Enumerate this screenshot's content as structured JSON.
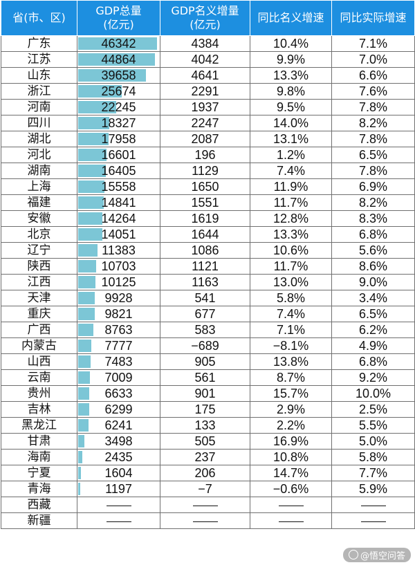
{
  "headers": {
    "province": "省(市、区)",
    "gdp_total_l1": "GDP总量",
    "gdp_total_l2": "(亿元)",
    "gdp_nominal_inc_l1": "GDP名义增量",
    "gdp_nominal_inc_l2": "(亿元)",
    "nominal_growth": "同比名义增速",
    "real_growth": "同比实际增速"
  },
  "gdp_max": 46342,
  "bar_color": "#7cc6d6",
  "header_color": "#1d8fe0",
  "rows": [
    {
      "province": "广东",
      "gdp": 46342,
      "gdp_text": "46342",
      "inc": "4384",
      "nominal": "10.4%",
      "real": "7.1%"
    },
    {
      "province": "江苏",
      "gdp": 44864,
      "gdp_text": "44864",
      "inc": "4042",
      "nominal": "9.9%",
      "real": "7.0%"
    },
    {
      "province": "山东",
      "gdp": 39658,
      "gdp_text": "39658",
      "inc": "4641",
      "nominal": "13.3%",
      "real": "6.6%"
    },
    {
      "province": "浙江",
      "gdp": 25674,
      "gdp_text": "25674",
      "inc": "2291",
      "nominal": "9.8%",
      "real": "7.6%"
    },
    {
      "province": "河南",
      "gdp": 22245,
      "gdp_text": "22245",
      "inc": "1937",
      "nominal": "9.5%",
      "real": "7.8%"
    },
    {
      "province": "四川",
      "gdp": 18327,
      "gdp_text": "18327",
      "inc": "2247",
      "nominal": "14.0%",
      "real": "8.2%"
    },
    {
      "province": "湖北",
      "gdp": 17958,
      "gdp_text": "17958",
      "inc": "2087",
      "nominal": "13.1%",
      "real": "7.8%"
    },
    {
      "province": "河北",
      "gdp": 16601,
      "gdp_text": "16601",
      "inc": "196",
      "nominal": "1.2%",
      "real": "6.5%"
    },
    {
      "province": "湖南",
      "gdp": 16405,
      "gdp_text": "16405",
      "inc": "1129",
      "nominal": "7.4%",
      "real": "7.8%"
    },
    {
      "province": "上海",
      "gdp": 15558,
      "gdp_text": "15558",
      "inc": "1650",
      "nominal": "11.9%",
      "real": "6.9%"
    },
    {
      "province": "福建",
      "gdp": 14841,
      "gdp_text": "14841",
      "inc": "1551",
      "nominal": "11.7%",
      "real": "8.2%"
    },
    {
      "province": "安徽",
      "gdp": 14264,
      "gdp_text": "14264",
      "inc": "1619",
      "nominal": "12.8%",
      "real": "8.3%"
    },
    {
      "province": "北京",
      "gdp": 14051,
      "gdp_text": "14051",
      "inc": "1644",
      "nominal": "13.3%",
      "real": "6.8%"
    },
    {
      "province": "辽宁",
      "gdp": 11383,
      "gdp_text": "11383",
      "inc": "1086",
      "nominal": "10.6%",
      "real": "5.6%"
    },
    {
      "province": "陕西",
      "gdp": 10703,
      "gdp_text": "10703",
      "inc": "1121",
      "nominal": "11.7%",
      "real": "8.6%"
    },
    {
      "province": "江西",
      "gdp": 10125,
      "gdp_text": "10125",
      "inc": "1163",
      "nominal": "13.0%",
      "real": "9.0%"
    },
    {
      "province": "天津",
      "gdp": 9928,
      "gdp_text": "9928",
      "inc": "541",
      "nominal": "5.8%",
      "real": "3.4%"
    },
    {
      "province": "重庆",
      "gdp": 9821,
      "gdp_text": "9821",
      "inc": "677",
      "nominal": "7.4%",
      "real": "6.5%"
    },
    {
      "province": "广西",
      "gdp": 8763,
      "gdp_text": "8763",
      "inc": "583",
      "nominal": "7.1%",
      "real": "6.2%"
    },
    {
      "province": "内蒙古",
      "gdp": 7777,
      "gdp_text": "7777",
      "inc": "−689",
      "nominal": "−8.1%",
      "real": "4.9%"
    },
    {
      "province": "山西",
      "gdp": 7483,
      "gdp_text": "7483",
      "inc": "905",
      "nominal": "13.8%",
      "real": "6.8%"
    },
    {
      "province": "云南",
      "gdp": 7009,
      "gdp_text": "7009",
      "inc": "561",
      "nominal": "8.7%",
      "real": "9.2%"
    },
    {
      "province": "贵州",
      "gdp": 6633,
      "gdp_text": "6633",
      "inc": "901",
      "nominal": "15.7%",
      "real": "10.0%"
    },
    {
      "province": "吉林",
      "gdp": 6299,
      "gdp_text": "6299",
      "inc": "175",
      "nominal": "2.9%",
      "real": "2.5%"
    },
    {
      "province": "黑龙江",
      "gdp": 6241,
      "gdp_text": "6241",
      "inc": "133",
      "nominal": "2.2%",
      "real": "5.5%"
    },
    {
      "province": "甘肃",
      "gdp": 3498,
      "gdp_text": "3498",
      "inc": "505",
      "nominal": "16.9%",
      "real": "5.0%"
    },
    {
      "province": "海南",
      "gdp": 2435,
      "gdp_text": "2435",
      "inc": "237",
      "nominal": "10.8%",
      "real": "5.8%"
    },
    {
      "province": "宁夏",
      "gdp": 1604,
      "gdp_text": "1604",
      "inc": "206",
      "nominal": "14.7%",
      "real": "7.7%"
    },
    {
      "province": "青海",
      "gdp": 1197,
      "gdp_text": "1197",
      "inc": "−7",
      "nominal": "−0.6%",
      "real": "5.9%"
    },
    {
      "province": "西藏",
      "gdp": null,
      "gdp_text": "",
      "inc": "",
      "nominal": "",
      "real": "",
      "empty": true
    },
    {
      "province": "新疆",
      "gdp": null,
      "gdp_text": "",
      "inc": "",
      "nominal": "",
      "real": "",
      "empty": true
    }
  ],
  "watermark": "@悟空问答"
}
